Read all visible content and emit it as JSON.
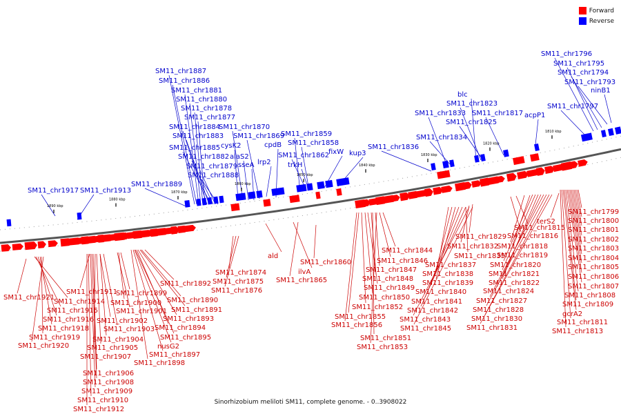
{
  "colors": {
    "forward": "#ff0000",
    "reverse": "#0000ff",
    "forward_text": "#cc0000",
    "reverse_text": "#0000cc",
    "axis": "#000000"
  },
  "legend": {
    "forward": "Forward",
    "reverse": "Reverse"
  },
  "caption": "Sinorhizobium meliloti SM11, complete genome. - 0..3908022",
  "kbp_ticks": [
    "1800 kbp",
    "1810 kbp",
    "1820 kbp",
    "1830 kbp",
    "1840 kbp",
    "1850 kbp",
    "1860 kbp",
    "1870 kbp",
    "1880 kbp",
    "1890 kbp"
  ],
  "reverse_labels": [
    "SM11_chr1917",
    "SM11_chr1913",
    "SM11_chr1889",
    "SM11_chr1887",
    "SM11_chr1886",
    "SM11_chr1881",
    "SM11_chr1880",
    "SM11_chr1878",
    "SM11_chr1877",
    "SM11_chr1884",
    "SM11_chr1883",
    "SM11_chr1885",
    "SM11_chr1882",
    "SM11_chr1879",
    "SM11_chr1888",
    "cysK2",
    "SM11_chr1870",
    "alaS2",
    "sseA",
    "SM11_chr1869",
    "lrp2",
    "cpdB",
    "SM11_chr1859",
    "SM11_chr1858",
    "SM11_chr1862",
    "trkH",
    "fixW",
    "kup3",
    "SM11_chr1836",
    "SM11_chr1833",
    "SM11_chr1834",
    "blc",
    "SM11_chr1823",
    "SM11_chr1825",
    "SM11_chr1817",
    "acpP1",
    "SM11_chr1797",
    "SM11_chr1796",
    "SM11_chr1795",
    "SM11_chr1794",
    "SM11_chr1793",
    "ninB1"
  ],
  "forward_labels": [
    "SM11_chr1921",
    "SM11_chr1914",
    "SM11_chr1915",
    "SM11_chr1916",
    "SM11_chr1918",
    "SM11_chr1919",
    "SM11_chr1920",
    "SM11_chr1911",
    "SM11_chr1899",
    "SM11_chr1900",
    "SM11_chr1901",
    "SM11_chr1902",
    "SM11_chr1903",
    "SM11_chr1904",
    "SM11_chr1905",
    "SM11_chr1907",
    "SM11_chr1906",
    "SM11_chr1908",
    "SM11_chr1909",
    "SM11_chr1910",
    "SM11_chr1912",
    "SM11_chr1892",
    "SM11_chr1890",
    "SM11_chr1891",
    "SM11_chr1893",
    "SM11_chr1894",
    "SM11_chr1895",
    "nusG2",
    "SM11_chr1897",
    "SM11_chr1898",
    "SM11_chr1874",
    "SM11_chr1875",
    "SM11_chr1876",
    "ald",
    "ilvA",
    "SM11_chr1865",
    "SM11_chr1860",
    "SM11_chr1844",
    "SM11_chr1846",
    "SM11_chr1847",
    "SM11_chr1848",
    "SM11_chr1849",
    "SM11_chr1850",
    "SM11_chr1852",
    "SM11_chr1855",
    "SM11_chr1856",
    "SM11_chr1851",
    "SM11_chr1853",
    "SM11_chr1837",
    "SM11_chr1838",
    "SM11_chr1839",
    "SM11_chr1840",
    "SM11_chr1841",
    "SM11_chr1842",
    "SM11_chr1843",
    "SM11_chr1845",
    "SM11_chr1835",
    "SM11_chr1832",
    "SM11_chr1829",
    "SM11_chr1816",
    "SM11_chr1815",
    "SM11_chr1818",
    "SM11_chr1819",
    "SM11_chr1820",
    "SM11_chr1821",
    "SM11_chr1822",
    "SM11_chr1824",
    "SM11_chr1827",
    "SM11_chr1828",
    "SM11_chr1830",
    "SM11_chr1831",
    "terS2",
    "SM11_chr1799",
    "SM11_chr1800",
    "SM11_chr1801",
    "SM11_chr1802",
    "SM11_chr1803",
    "SM11_chr1804",
    "SM11_chr1805",
    "SM11_chr1806",
    "SM11_chr1807",
    "SM11_chr1808",
    "SM11_chr1809",
    "gcrA2",
    "SM11_chr1811",
    "SM11_chr1813"
  ]
}
